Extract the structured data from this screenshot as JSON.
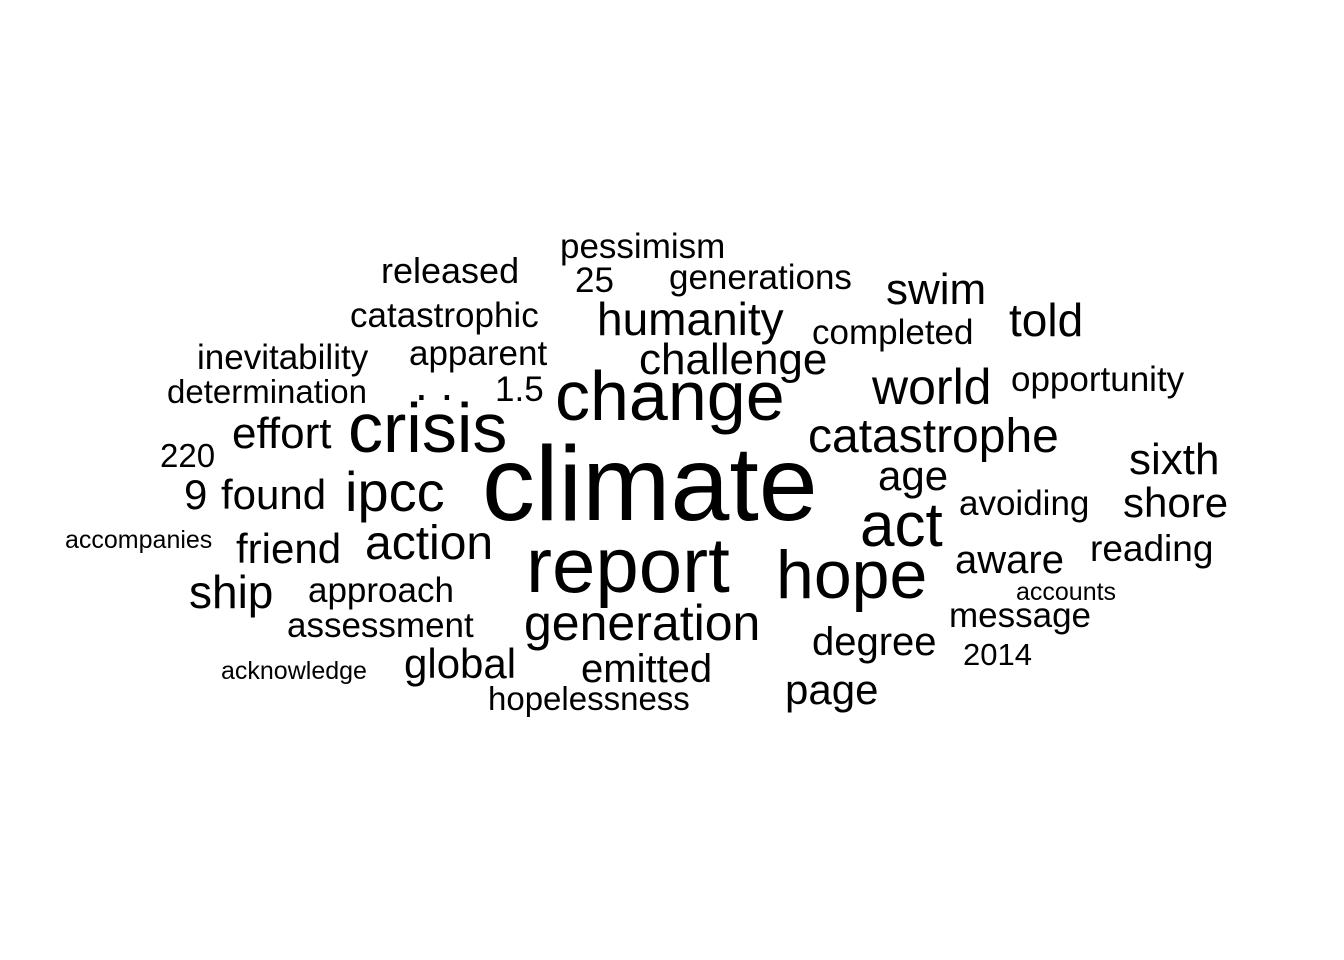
{
  "words": [
    {
      "text": "climate",
      "key": "climate"
    },
    {
      "text": "report",
      "key": "report"
    },
    {
      "text": "change",
      "key": "change"
    },
    {
      "text": "crisis",
      "key": "crisis"
    },
    {
      "text": "hope",
      "key": "hope"
    },
    {
      "text": "act",
      "key": "act"
    },
    {
      "text": "generation",
      "key": "generation"
    },
    {
      "text": "ipcc",
      "key": "ipcc"
    },
    {
      "text": "action",
      "key": "action"
    },
    {
      "text": "world",
      "key": "world"
    },
    {
      "text": "catastrophe",
      "key": "catastrophe"
    },
    {
      "text": "humanity",
      "key": "humanity"
    },
    {
      "text": "challenge",
      "key": "challenge"
    },
    {
      "text": "swim",
      "key": "swim"
    },
    {
      "text": "told",
      "key": "told"
    },
    {
      "text": "sixth",
      "key": "sixth"
    },
    {
      "text": "shore",
      "key": "shore"
    },
    {
      "text": "age",
      "key": "age"
    },
    {
      "text": "aware",
      "key": "aware"
    },
    {
      "text": "ship",
      "key": "ship"
    },
    {
      "text": "page",
      "key": "page"
    },
    {
      "text": "global",
      "key": "global"
    },
    {
      "text": "emitted",
      "key": "emitted"
    },
    {
      "text": "degree",
      "key": "degree"
    },
    {
      "text": "friend",
      "key": "friend"
    },
    {
      "text": "found",
      "key": "found"
    },
    {
      "text": "effort",
      "key": "effort"
    },
    {
      "text": "9",
      "key": "nine"
    },
    {
      "text": "released",
      "key": "released"
    },
    {
      "text": "catastrophic",
      "key": "catastrophic"
    },
    {
      "text": "pessimism",
      "key": "pessimism"
    },
    {
      "text": "25",
      "key": "twenty-five"
    },
    {
      "text": "generations",
      "key": "generations"
    },
    {
      "text": "completed",
      "key": "completed"
    },
    {
      "text": "inevitability",
      "key": "inevitability"
    },
    {
      "text": "apparent",
      "key": "apparent"
    },
    {
      "text": "determination",
      "key": "determination"
    },
    {
      "text": ". .",
      "key": "dots"
    },
    {
      "text": "1.5",
      "key": "one-point-five"
    },
    {
      "text": "opportunity",
      "key": "opportunity"
    },
    {
      "text": "220",
      "key": "two-twenty"
    },
    {
      "text": "avoiding",
      "key": "avoiding"
    },
    {
      "text": "reading",
      "key": "reading"
    },
    {
      "text": "accompanies",
      "key": "accompanies"
    },
    {
      "text": "approach",
      "key": "approach"
    },
    {
      "text": "assessment",
      "key": "assessment"
    },
    {
      "text": "message",
      "key": "message"
    },
    {
      "text": "accounts",
      "key": "accounts"
    },
    {
      "text": "2014",
      "key": "twenty-fourteen"
    },
    {
      "text": "acknowledge",
      "key": "acknowledge"
    },
    {
      "text": "hopelessness",
      "key": "hopelessness"
    }
  ]
}
